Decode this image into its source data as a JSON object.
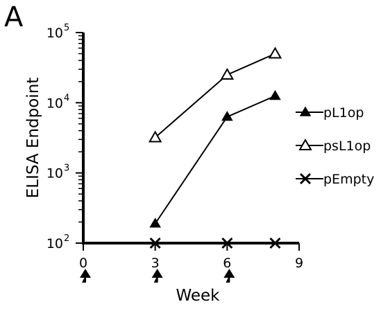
{
  "panel_label": "A",
  "chart_data": {
    "type": "line",
    "title": "",
    "xlabel": "Week",
    "ylabel": "ELISA Endpoint",
    "xlim": [
      0,
      9
    ],
    "ylim": [
      100,
      100000
    ],
    "y_scale": "log",
    "x_ticks": [
      "0",
      "3",
      "6",
      "9"
    ],
    "y_ticks": [
      {
        "base": "10",
        "exp": "2"
      },
      {
        "base": "10",
        "exp": "3"
      },
      {
        "base": "10",
        "exp": "4"
      },
      {
        "base": "10",
        "exp": "5"
      }
    ],
    "grid": false,
    "legend_position": "right",
    "immunization_weeks": [
      0,
      3,
      6
    ],
    "series": [
      {
        "name": "pL1op",
        "marker": "filled-triangle",
        "x": [
          3,
          6,
          8
        ],
        "y": [
          190,
          6300,
          12500
        ]
      },
      {
        "name": "psL1op",
        "marker": "open-triangle",
        "x": [
          3,
          6,
          8
        ],
        "y": [
          3200,
          25000,
          50000
        ]
      },
      {
        "name": "pEmpty",
        "marker": "x",
        "x": [
          3,
          6,
          8
        ],
        "y": [
          100,
          100,
          100
        ]
      }
    ]
  }
}
